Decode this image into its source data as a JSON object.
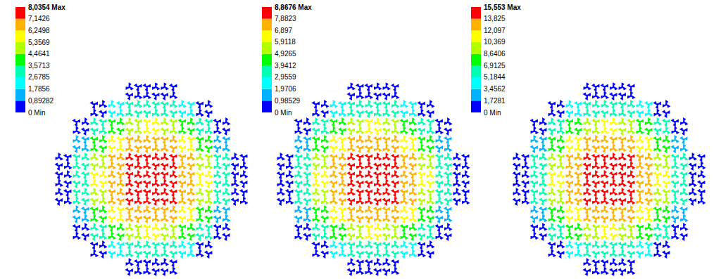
{
  "chart_data": [
    {
      "type": "contour",
      "zlim": [
        0,
        8.0354
      ],
      "zticks": [
        {
          "value": 0,
          "label": "0 Min"
        },
        {
          "value": 0.89282,
          "label": "0,89282"
        },
        {
          "value": 1.7856,
          "label": "1,7856"
        },
        {
          "value": 2.6785,
          "label": "2,6785"
        },
        {
          "value": 3.5713,
          "label": "3,5713"
        },
        {
          "value": 4.4641,
          "label": "4,4641"
        },
        {
          "value": 5.3569,
          "label": "5,3569"
        },
        {
          "value": 6.2498,
          "label": "6,2498"
        },
        {
          "value": 7.1426,
          "label": "7,1426"
        },
        {
          "value": 8.0354,
          "label": "8,0354 Max"
        }
      ],
      "colors": [
        "#0000ff",
        "#00b2ff",
        "#00ffff",
        "#00ffb2",
        "#00ff00",
        "#b2ff00",
        "#ffff00",
        "#ffb200",
        "#ff0000"
      ],
      "cells": [
        [
          null,
          null,
          null,
          null,
          0.3,
          0.6,
          0.3,
          null,
          null,
          null,
          null
        ],
        [
          null,
          null,
          0.6,
          2.08,
          2.98,
          3.27,
          2.98,
          2.08,
          0.6,
          null,
          null
        ],
        [
          null,
          0.6,
          2.68,
          4.17,
          5.06,
          5.36,
          5.06,
          4.17,
          2.68,
          0.6,
          null
        ],
        [
          null,
          1.2,
          4.17,
          5.66,
          6.55,
          6.85,
          6.55,
          5.66,
          4.17,
          1.2,
          null
        ],
        [
          0.3,
          2.98,
          5.06,
          6.55,
          7.44,
          7.74,
          7.44,
          6.55,
          5.06,
          2.98,
          0.3
        ],
        [
          0.6,
          3.27,
          5.36,
          6.85,
          7.74,
          8.0,
          7.74,
          6.85,
          5.36,
          3.27,
          0.6
        ],
        [
          0.3,
          2.98,
          5.06,
          6.55,
          7.44,
          7.74,
          7.44,
          6.55,
          5.06,
          2.98,
          0.3
        ],
        [
          null,
          1.2,
          4.17,
          5.66,
          6.55,
          6.85,
          6.55,
          5.66,
          4.17,
          1.2,
          null
        ],
        [
          null,
          0.6,
          2.68,
          4.17,
          5.06,
          5.36,
          5.06,
          4.17,
          2.68,
          0.6,
          null
        ],
        [
          null,
          null,
          0.6,
          2.08,
          2.98,
          3.27,
          2.98,
          2.08,
          0.6,
          null,
          null
        ],
        [
          null,
          null,
          null,
          null,
          0.3,
          0.6,
          0.3,
          null,
          null,
          null,
          null
        ]
      ]
    },
    {
      "type": "contour",
      "zlim": [
        0,
        8.8676
      ],
      "zticks": [
        {
          "value": 0,
          "label": "0 Min"
        },
        {
          "value": 0.98529,
          "label": "0,98529"
        },
        {
          "value": 1.9706,
          "label": "1,9706"
        },
        {
          "value": 2.9559,
          "label": "2,9559"
        },
        {
          "value": 3.9412,
          "label": "3,9412"
        },
        {
          "value": 4.9265,
          "label": "4,9265"
        },
        {
          "value": 5.9118,
          "label": "5,9118"
        },
        {
          "value": 6.897,
          "label": "6,897"
        },
        {
          "value": 7.8823,
          "label": "7,8823"
        },
        {
          "value": 8.8676,
          "label": "8,8676 Max"
        }
      ],
      "colors": [
        "#0000ff",
        "#00b2ff",
        "#00ffff",
        "#00ffb2",
        "#00ff00",
        "#b2ff00",
        "#ffff00",
        "#ffb200",
        "#ff0000"
      ],
      "cells": [
        [
          null,
          null,
          null,
          null,
          0.33,
          0.66,
          0.33,
          null,
          null,
          null,
          null
        ],
        [
          null,
          null,
          0.66,
          2.3,
          3.29,
          3.61,
          3.29,
          2.3,
          0.66,
          null,
          null
        ],
        [
          null,
          0.66,
          2.96,
          4.6,
          5.58,
          5.92,
          5.58,
          4.6,
          2.96,
          0.66,
          null
        ],
        [
          null,
          1.32,
          4.6,
          6.25,
          7.23,
          7.56,
          7.23,
          6.25,
          4.6,
          1.32,
          null
        ],
        [
          0.33,
          3.29,
          5.58,
          7.23,
          8.21,
          8.54,
          8.21,
          7.23,
          5.58,
          3.29,
          0.33
        ],
        [
          0.66,
          3.61,
          5.92,
          7.56,
          8.54,
          8.83,
          8.54,
          7.56,
          5.92,
          3.61,
          0.66
        ],
        [
          0.33,
          3.29,
          5.58,
          7.23,
          8.21,
          8.54,
          8.21,
          7.23,
          5.58,
          3.29,
          0.33
        ],
        [
          null,
          1.32,
          4.6,
          6.25,
          7.23,
          7.56,
          7.23,
          6.25,
          4.6,
          1.32,
          null
        ],
        [
          null,
          0.66,
          2.96,
          4.6,
          5.58,
          5.92,
          5.58,
          4.6,
          2.96,
          0.66,
          null
        ],
        [
          null,
          null,
          0.66,
          2.3,
          3.29,
          3.61,
          3.29,
          2.3,
          0.66,
          null,
          null
        ],
        [
          null,
          null,
          null,
          null,
          0.33,
          0.66,
          0.33,
          null,
          null,
          null,
          null
        ]
      ]
    },
    {
      "type": "contour",
      "zlim": [
        0,
        15.553
      ],
      "zticks": [
        {
          "value": 0,
          "label": "0 Min"
        },
        {
          "value": 1.7281,
          "label": "1,7281"
        },
        {
          "value": 3.4562,
          "label": "3,4562"
        },
        {
          "value": 5.1844,
          "label": "5,1844"
        },
        {
          "value": 6.9125,
          "label": "6,9125"
        },
        {
          "value": 8.6406,
          "label": "8,6406"
        },
        {
          "value": 10.369,
          "label": "10,369"
        },
        {
          "value": 12.097,
          "label": "12,097"
        },
        {
          "value": 13.825,
          "label": "13,825"
        },
        {
          "value": 15.553,
          "label": "15,553 Max"
        }
      ],
      "colors": [
        "#0000ff",
        "#00b2ff",
        "#00ffff",
        "#00ffb2",
        "#00ff00",
        "#b2ff00",
        "#ffff00",
        "#ffb200",
        "#ff0000"
      ],
      "cells": [
        [
          null,
          null,
          null,
          null,
          0.58,
          1.16,
          0.58,
          null,
          null,
          null,
          null
        ],
        [
          null,
          null,
          1.16,
          4.03,
          5.77,
          6.33,
          5.77,
          4.03,
          1.16,
          null,
          null
        ],
        [
          null,
          1.16,
          5.19,
          8.07,
          9.79,
          10.37,
          9.79,
          8.07,
          5.19,
          1.16,
          null
        ],
        [
          null,
          2.32,
          8.07,
          10.96,
          12.68,
          13.26,
          12.68,
          10.96,
          8.07,
          2.32,
          null
        ],
        [
          0.58,
          5.77,
          9.79,
          12.68,
          14.4,
          14.98,
          14.4,
          12.68,
          9.79,
          5.77,
          0.58
        ],
        [
          1.16,
          6.33,
          10.37,
          13.26,
          14.98,
          15.48,
          14.98,
          13.26,
          10.37,
          6.33,
          1.16
        ],
        [
          0.58,
          5.77,
          9.79,
          12.68,
          14.4,
          14.98,
          14.4,
          12.68,
          9.79,
          5.77,
          0.58
        ],
        [
          null,
          2.32,
          8.07,
          10.96,
          12.68,
          13.26,
          12.68,
          10.96,
          8.07,
          2.32,
          null
        ],
        [
          null,
          1.16,
          5.19,
          8.07,
          9.79,
          10.37,
          9.79,
          8.07,
          5.19,
          1.16,
          null
        ],
        [
          null,
          null,
          1.16,
          4.03,
          5.77,
          6.33,
          5.77,
          4.03,
          1.16,
          null,
          null
        ],
        [
          null,
          null,
          null,
          null,
          0.58,
          1.16,
          0.58,
          null,
          null,
          null,
          null
        ]
      ]
    }
  ]
}
